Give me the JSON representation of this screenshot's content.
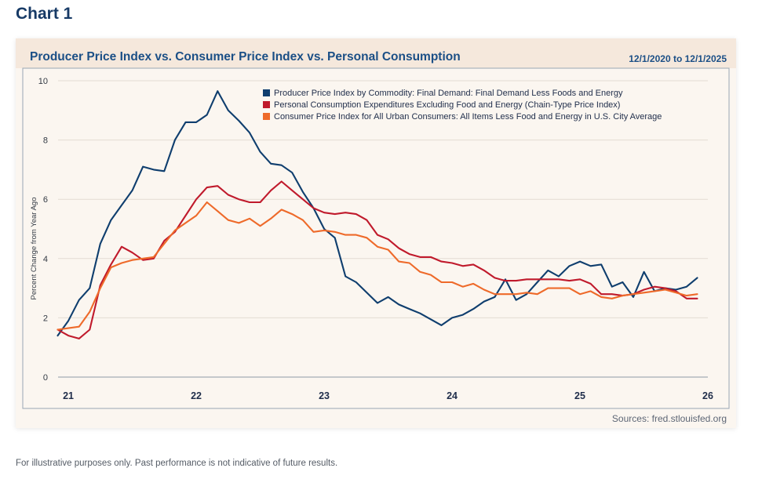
{
  "heading": "Chart 1",
  "date_range": "12/1/2020 to 12/1/2025",
  "sources": "Sources: fred.stlouisfed.org",
  "disclaimer": "For illustrative purposes only. Past performance is not indicative of future results.",
  "colors": {
    "ppi": "#0f3e6e",
    "pce": "#c01a2c",
    "cpi": "#ee6a2a",
    "grid": "#e3dcd3",
    "card": "#fbf6f0",
    "header": "#f5e8dc"
  },
  "chart_data": {
    "type": "line",
    "title": "Producer Price Index vs. Consumer Price Index vs. Personal Consumption",
    "xlabel": "",
    "ylabel": "Percent Change from Year Ago",
    "ylim": [
      0,
      10
    ],
    "yticks": [
      0,
      2,
      4,
      6,
      8,
      10
    ],
    "xlim": [
      2020.92,
      2026.0
    ],
    "xticks": [
      {
        "value": 2021.0,
        "label": "21"
      },
      {
        "value": 2022.0,
        "label": "22"
      },
      {
        "value": 2023.0,
        "label": "23"
      },
      {
        "value": 2024.0,
        "label": "24"
      },
      {
        "value": 2025.0,
        "label": "25"
      },
      {
        "value": 2026.0,
        "label": "26"
      }
    ],
    "grid": true,
    "legend_position": "top-right",
    "series": [
      {
        "name": "Producer Price Index by Commodity: Final Demand: Final Demand Less Foods and Energy",
        "color_key": "ppi",
        "values": [
          1.4,
          1.9,
          2.6,
          3.0,
          4.5,
          5.3,
          5.8,
          6.3,
          7.1,
          7.0,
          6.95,
          8.0,
          8.6,
          8.6,
          8.85,
          9.65,
          9.0,
          8.65,
          8.25,
          7.6,
          7.2,
          7.15,
          6.9,
          6.25,
          5.7,
          5.0,
          4.7,
          3.4,
          3.2,
          2.85,
          2.5,
          2.7,
          2.45,
          2.3,
          2.15,
          1.95,
          1.75,
          2.0,
          2.1,
          2.3,
          2.55,
          2.7,
          3.3,
          2.6,
          2.8,
          3.2,
          3.6,
          3.4,
          3.75,
          3.9,
          3.75,
          3.8,
          3.05,
          3.2,
          2.7,
          3.55,
          2.9,
          3.0,
          2.95,
          3.05,
          3.35
        ]
      },
      {
        "name": "Personal Consumption Expenditures Excluding Food and Energy (Chain-Type Price Index)",
        "color_key": "pce",
        "values": [
          1.6,
          1.4,
          1.3,
          1.6,
          3.1,
          3.8,
          4.4,
          4.2,
          3.95,
          4.0,
          4.6,
          4.9,
          5.45,
          6.0,
          6.4,
          6.45,
          6.15,
          6.0,
          5.9,
          5.9,
          6.3,
          6.6,
          6.3,
          6.0,
          5.7,
          5.55,
          5.5,
          5.55,
          5.5,
          5.3,
          4.8,
          4.65,
          4.35,
          4.15,
          4.05,
          4.05,
          3.9,
          3.85,
          3.75,
          3.8,
          3.6,
          3.35,
          3.25,
          3.25,
          3.3,
          3.3,
          3.3,
          3.3,
          3.25,
          3.3,
          3.15,
          2.8,
          2.8,
          2.75,
          2.8,
          2.95,
          3.05,
          3.0,
          2.9,
          2.65,
          2.65
        ]
      },
      {
        "name": "Consumer Price Index for All Urban Consumers: All Items Less Food and Energy in U.S. City Average",
        "color_key": "cpi",
        "values": [
          1.6,
          1.65,
          1.7,
          2.2,
          3.0,
          3.7,
          3.85,
          3.95,
          4.0,
          4.05,
          4.5,
          4.95,
          5.2,
          5.45,
          5.9,
          5.6,
          5.3,
          5.2,
          5.35,
          5.1,
          5.35,
          5.65,
          5.5,
          5.3,
          4.9,
          4.95,
          4.9,
          4.8,
          4.8,
          4.7,
          4.4,
          4.3,
          3.9,
          3.85,
          3.55,
          3.45,
          3.2,
          3.2,
          3.05,
          3.15,
          2.95,
          2.8,
          2.8,
          2.8,
          2.85,
          2.8,
          3.0,
          3.0,
          3.0,
          2.8,
          2.9,
          2.7,
          2.65,
          2.75,
          2.8,
          2.85,
          2.9,
          2.95,
          2.85,
          2.75,
          2.8
        ]
      }
    ],
    "x_start": 2020.917,
    "x_step_months": 1
  },
  "legend": [
    {
      "label": "Producer Price Index by Commodity: Final Demand: Final Demand Less Foods and Energy",
      "color_key": "ppi"
    },
    {
      "label": "Personal Consumption Expenditures Excluding Food and Energy (Chain-Type Price Index)",
      "color_key": "pce"
    },
    {
      "label": "Consumer Price Index for All Urban Consumers: All Items Less Food and Energy in U.S. City Average",
      "color_key": "cpi"
    }
  ]
}
